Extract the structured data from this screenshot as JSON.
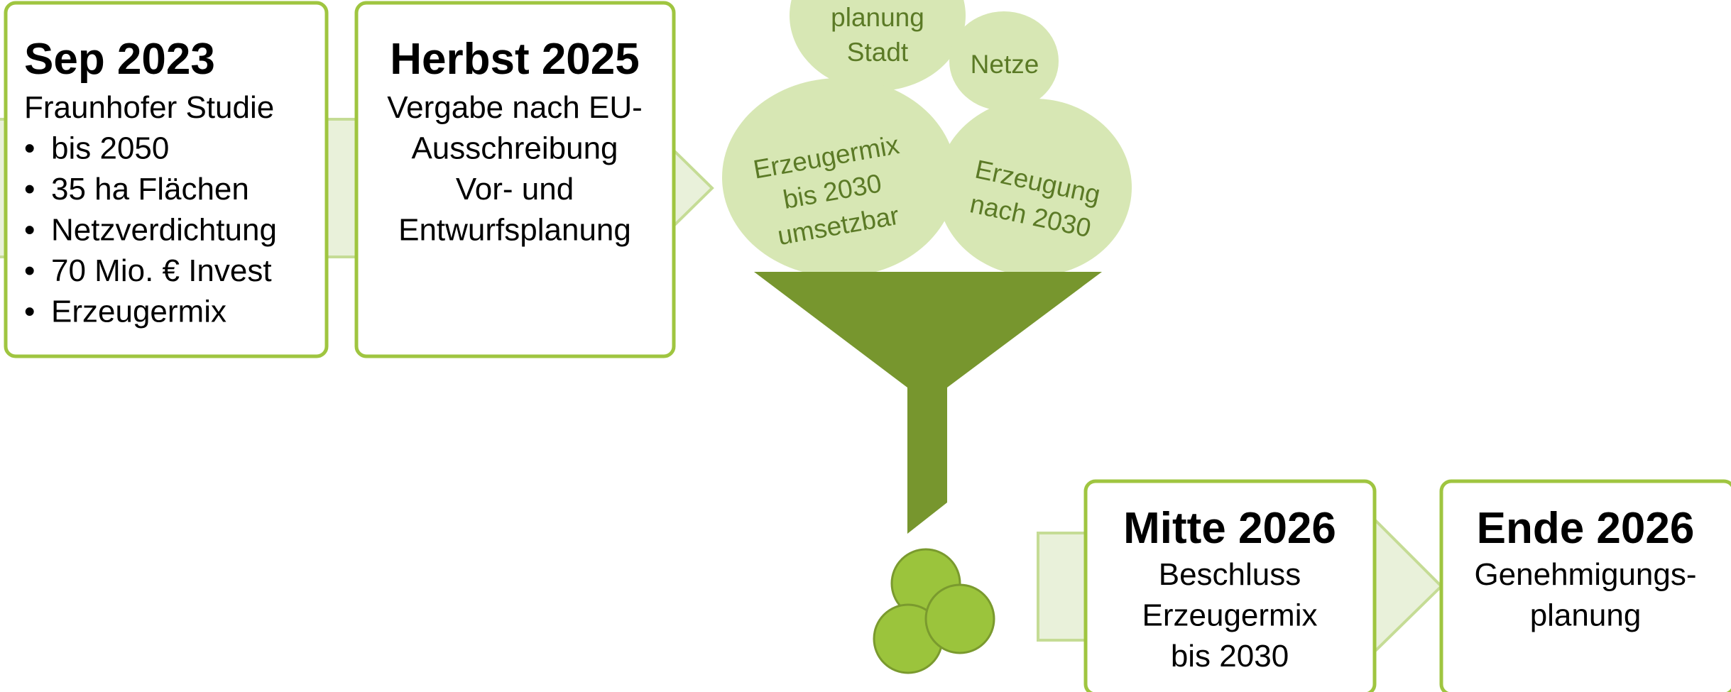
{
  "timeline": [
    {
      "title": "Sep 2023",
      "lines": [
        "Fraunhofer Studie"
      ],
      "bullets": [
        "bis 2050",
        "35 ha Flächen",
        "Netzverdichtung",
        "70 Mio. € Invest",
        "Erzeugermix"
      ]
    },
    {
      "title": "Herbst 2025",
      "lines": [
        "Vergabe nach EU-",
        "Ausschreibung",
        "Vor- und",
        "Entwurfsplanung"
      ]
    },
    {
      "title": "Mitte 2026",
      "lines": [
        "Beschluss",
        "Erzeugermix",
        "bis 2030"
      ]
    },
    {
      "title": "Ende 2026",
      "lines": [
        "Genehmigungs-",
        "planung"
      ]
    }
  ],
  "bubbles": [
    {
      "lines": [
        "planung",
        "Stadt"
      ]
    },
    {
      "lines": [
        "Netze"
      ]
    },
    {
      "lines": [
        "Erzeugermix",
        "bis 2030",
        "umsetzbar"
      ]
    },
    {
      "lines": [
        "Erzeugung",
        "nach 2030"
      ]
    }
  ]
}
